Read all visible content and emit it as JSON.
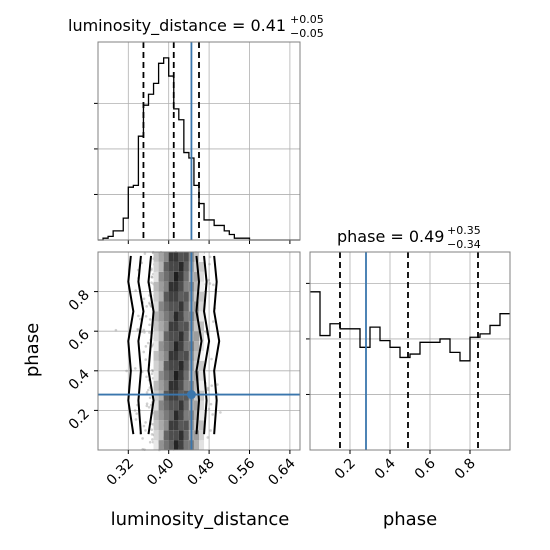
{
  "chart_data": [
    {
      "type": "histogram",
      "panel": "luminosity_distance-1d",
      "title": {
        "param": "luminosity_distance",
        "value": "0.41",
        "plus": "+0.05",
        "minus": "−0.05"
      },
      "xlim": [
        0.26,
        0.66
      ],
      "bin_edges": [
        0.26,
        0.27,
        0.28,
        0.29,
        0.3,
        0.31,
        0.32,
        0.33,
        0.34,
        0.35,
        0.36,
        0.37,
        0.38,
        0.39,
        0.4,
        0.41,
        0.42,
        0.43,
        0.44,
        0.45,
        0.46,
        0.47,
        0.48,
        0.49,
        0.5,
        0.51,
        0.52,
        0.53,
        0.54,
        0.55,
        0.56,
        0.57,
        0.58,
        0.59,
        0.6,
        0.61,
        0.62,
        0.63,
        0.64,
        0.65,
        0.66
      ],
      "density": [
        0.0,
        0.01,
        0.02,
        0.05,
        0.05,
        0.12,
        0.29,
        0.3,
        0.57,
        0.74,
        0.8,
        0.86,
        0.97,
        1.0,
        0.9,
        0.72,
        0.66,
        0.48,
        0.45,
        0.3,
        0.2,
        0.11,
        0.11,
        0.08,
        0.08,
        0.05,
        0.03,
        0.01,
        0.01,
        0.01,
        0.0,
        0.0,
        0.0,
        0.0,
        0.0,
        0.0,
        0.0,
        0.0,
        0.0,
        0.0
      ],
      "quantiles": [
        0.35,
        0.41,
        0.46
      ],
      "truth": 0.445
    },
    {
      "type": "histogram",
      "panel": "phase-1d",
      "title": {
        "param": "phase",
        "value": "0.49",
        "plus": "+0.35",
        "minus": "−0.34"
      },
      "xlim": [
        0.0,
        1.0
      ],
      "bin_edges": [
        0.0,
        0.05,
        0.1,
        0.15,
        0.2,
        0.25,
        0.3,
        0.35,
        0.4,
        0.45,
        0.5,
        0.55,
        0.6,
        0.65,
        0.7,
        0.75,
        0.8,
        0.85,
        0.9,
        0.95,
        1.0
      ],
      "density": [
        0.94,
        0.68,
        0.75,
        0.72,
        0.72,
        0.61,
        0.73,
        0.65,
        0.61,
        0.55,
        0.57,
        0.64,
        0.64,
        0.66,
        0.58,
        0.53,
        0.67,
        0.69,
        0.74,
        0.81
      ],
      "quantiles": [
        0.15,
        0.49,
        0.84
      ],
      "truth": 0.28
    },
    {
      "type": "scatter",
      "panel": "2d-corner",
      "xlabel": "luminosity_distance",
      "ylabel": "phase",
      "xlim": [
        0.26,
        0.66
      ],
      "ylim": [
        0.0,
        1.0
      ],
      "x_ticks": [
        "0.32",
        "0.40",
        "0.48",
        "0.56",
        "0.64"
      ],
      "x_tick_values": [
        0.32,
        0.4,
        0.48,
        0.56,
        0.64
      ],
      "y_ticks": [
        "0.2",
        "0.4",
        "0.6",
        "0.8"
      ],
      "y_tick_values": [
        0.2,
        0.4,
        0.6,
        0.8
      ],
      "phase_ticks": [
        "0.2",
        "0.4",
        "0.6",
        "0.8"
      ],
      "phase_tick_values": [
        0.2,
        0.4,
        0.6,
        0.8
      ],
      "truth": {
        "x": 0.445,
        "y": 0.28
      },
      "contours": [
        {
          "x_left": [
            0.365,
            0.36,
            0.37,
            0.365,
            0.36,
            0.37,
            0.36
          ],
          "x_right": [
            0.455,
            0.46,
            0.455,
            0.465,
            0.455,
            0.46,
            0.455
          ],
          "y": [
            0.98,
            0.85,
            0.7,
            0.55,
            0.4,
            0.25,
            0.08
          ]
        },
        {
          "x_left": [
            0.345,
            0.34,
            0.35,
            0.34,
            0.345,
            0.34,
            0.345
          ],
          "x_right": [
            0.47,
            0.475,
            0.47,
            0.48,
            0.47,
            0.475,
            0.47
          ],
          "y": [
            0.98,
            0.85,
            0.7,
            0.55,
            0.4,
            0.25,
            0.08
          ]
        },
        {
          "x_left": [
            0.325,
            0.32,
            0.33,
            0.32,
            0.325,
            0.32,
            0.33
          ],
          "x_right": [
            0.49,
            0.495,
            0.49,
            0.5,
            0.49,
            0.495,
            0.49
          ],
          "y": [
            0.98,
            0.85,
            0.7,
            0.55,
            0.4,
            0.25,
            0.08
          ]
        }
      ],
      "colors": {
        "truth": "#3a76ad",
        "points": "#9a9a9a"
      }
    }
  ]
}
